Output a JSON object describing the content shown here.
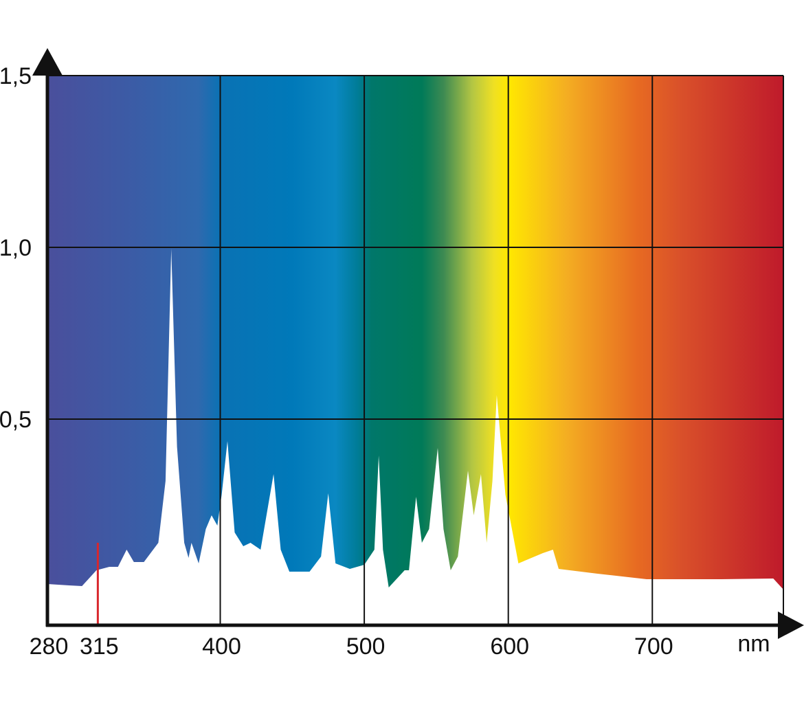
{
  "chart_data": {
    "type": "area",
    "x_label": "nm",
    "x": [
      280,
      295,
      304,
      314,
      323,
      329,
      335,
      340,
      347,
      357,
      362,
      366,
      370,
      375,
      378,
      380,
      385,
      390,
      394,
      398,
      401,
      405,
      410,
      416,
      421,
      428,
      437,
      442,
      448,
      462,
      470,
      475,
      480,
      490,
      500,
      507,
      510,
      513,
      517,
      528,
      531,
      536,
      540,
      545,
      551,
      555,
      560,
      565,
      572,
      576,
      581,
      585,
      589,
      592,
      598,
      607,
      624,
      631,
      635,
      662,
      696,
      748,
      784,
      791
    ],
    "values": [
      0.02,
      0.016,
      0.014,
      0.06,
      0.07,
      0.07,
      0.12,
      0.084,
      0.084,
      0.14,
      0.32,
      0.996,
      0.42,
      0.14,
      0.096,
      0.14,
      0.08,
      0.18,
      0.22,
      0.19,
      0.28,
      0.436,
      0.17,
      0.13,
      0.14,
      0.12,
      0.34,
      0.12,
      0.056,
      0.056,
      0.1,
      0.284,
      0.08,
      0.064,
      0.076,
      0.12,
      0.394,
      0.12,
      0.01,
      0.06,
      0.06,
      0.274,
      0.14,
      0.18,
      0.416,
      0.18,
      0.06,
      0.1,
      0.35,
      0.22,
      0.34,
      0.14,
      0.32,
      0.57,
      0.28,
      0.08,
      0.11,
      0.12,
      0.064,
      0.05,
      0.034,
      0.034,
      0.036,
      0.004
    ],
    "color": "#ffffff",
    "xlim": [
      280,
      791
    ],
    "ylim": [
      -0.1,
      1.5
    ],
    "xticks": [
      280,
      315,
      400,
      500,
      600,
      700
    ],
    "xtick_colors": [
      "#111111",
      "#d9262c",
      "#111111",
      "#111111",
      "#111111",
      "#111111"
    ],
    "yticks": [
      {
        "value": 0.5,
        "label": "0,5"
      },
      {
        "value": 1.0,
        "label": "1,0"
      },
      {
        "value": 1.5,
        "label": "1,5"
      }
    ],
    "grid": true,
    "background_gradient": [
      {
        "x": 280,
        "color": "#4a4f9c"
      },
      {
        "x": 340,
        "color": "#3b5ca6"
      },
      {
        "x": 385,
        "color": "#2f69ae"
      },
      {
        "x": 400,
        "color": "#0a72b4"
      },
      {
        "x": 450,
        "color": "#0079b9"
      },
      {
        "x": 480,
        "color": "#0a88c2"
      },
      {
        "x": 495,
        "color": "#007c98"
      },
      {
        "x": 505,
        "color": "#00776a"
      },
      {
        "x": 540,
        "color": "#007a58"
      },
      {
        "x": 555,
        "color": "#3d8a52"
      },
      {
        "x": 575,
        "color": "#b4c643"
      },
      {
        "x": 590,
        "color": "#efe023"
      },
      {
        "x": 600,
        "color": "#ffe800"
      },
      {
        "x": 640,
        "color": "#f4ae22"
      },
      {
        "x": 690,
        "color": "#e76a22"
      },
      {
        "x": 720,
        "color": "#d9502a"
      },
      {
        "x": 791,
        "color": "#bf1a2b"
      }
    ]
  }
}
